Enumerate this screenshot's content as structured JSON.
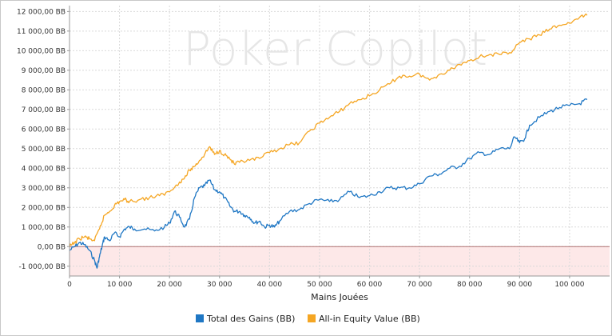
{
  "watermark": "Poker Copilot",
  "chart_data": {
    "type": "line",
    "xlabel": "Mains Jouées",
    "ylabel": "",
    "title": "",
    "xlim": [
      0,
      108000
    ],
    "ylim": [
      -1500,
      12300
    ],
    "grid": true,
    "legend_position": "bottom-center",
    "x_ticks": [
      0,
      10000,
      20000,
      30000,
      40000,
      50000,
      60000,
      70000,
      80000,
      90000,
      100000
    ],
    "x_tick_labels": [
      "0",
      "10 000",
      "20 000",
      "30 000",
      "40 000",
      "50 000",
      "60 000",
      "70 000",
      "80 000",
      "90 000",
      "100 000"
    ],
    "y_ticks": [
      -1000,
      0,
      1000,
      2000,
      3000,
      4000,
      5000,
      6000,
      7000,
      8000,
      9000,
      10000,
      11000,
      12000
    ],
    "y_tick_labels": [
      "-1 000,00 BB",
      "0,00 BB",
      "1 000,00 BB",
      "2 000,00 BB",
      "3 000,00 BB",
      "4 000,00 BB",
      "5 000,00 BB",
      "6 000,00 BB",
      "7 000,00 BB",
      "8 000,00 BB",
      "9 000,00 BB",
      "10 000,00 BB",
      "11 000,00 BB",
      "12 000,00 BB"
    ],
    "negative_region_color": "#fde8e8",
    "zero_line_color": "#b07070",
    "series": [
      {
        "name": "Total des Gains (BB)",
        "color": "#1f77c4",
        "x": [
          0,
          1000,
          2000,
          3000,
          4000,
          5000,
          5500,
          6000,
          6500,
          7000,
          8000,
          9000,
          10000,
          11000,
          12000,
          13000,
          15000,
          17000,
          19000,
          20000,
          21000,
          22000,
          23000,
          24000,
          25000,
          26000,
          27000,
          28000,
          29000,
          30000,
          31000,
          32000,
          33000,
          34000,
          35000,
          36000,
          37000,
          38000,
          39000,
          40000,
          41000,
          42000,
          44000,
          46000,
          48000,
          50000,
          52000,
          54000,
          56000,
          58000,
          60000,
          62000,
          64000,
          66000,
          68000,
          70000,
          72000,
          74000,
          76000,
          78000,
          80000,
          82000,
          84000,
          86000,
          88000,
          89000,
          90000,
          91000,
          92000,
          94000,
          96000,
          98000,
          100000,
          102000,
          103500
        ],
        "y": [
          -200,
          0,
          200,
          100,
          -200,
          -700,
          -1100,
          -500,
          0,
          500,
          300,
          700,
          500,
          900,
          1000,
          900,
          900,
          800,
          1000,
          1200,
          1800,
          1500,
          1000,
          1400,
          2500,
          3000,
          3100,
          3400,
          2900,
          2800,
          2500,
          2100,
          1800,
          1800,
          1600,
          1500,
          1200,
          1300,
          1000,
          1100,
          1000,
          1300,
          1800,
          1900,
          2200,
          2400,
          2300,
          2400,
          2800,
          2500,
          2600,
          2800,
          3000,
          3000,
          3000,
          3200,
          3600,
          3700,
          4000,
          4100,
          4500,
          4800,
          4700,
          5000,
          5000,
          5600,
          5300,
          5500,
          6200,
          6600,
          6900,
          7100,
          7200,
          7300,
          7500
        ]
      },
      {
        "name": "All-in Equity Value (BB)",
        "color": "#f5a623",
        "x": [
          0,
          1000,
          2000,
          3000,
          4000,
          5000,
          6000,
          7000,
          8000,
          9000,
          10000,
          11000,
          12000,
          14000,
          16000,
          18000,
          20000,
          22000,
          23000,
          24000,
          25000,
          26000,
          27000,
          28000,
          29000,
          30000,
          31000,
          32000,
          33000,
          34000,
          36000,
          38000,
          40000,
          42000,
          44000,
          46000,
          48000,
          50000,
          52000,
          54000,
          56000,
          58000,
          60000,
          62000,
          64000,
          66000,
          68000,
          70000,
          72000,
          74000,
          76000,
          78000,
          80000,
          82000,
          84000,
          86000,
          88000,
          90000,
          92000,
          94000,
          96000,
          98000,
          100000,
          102000,
          103500
        ],
        "y": [
          0,
          200,
          400,
          500,
          400,
          300,
          900,
          1600,
          1800,
          2100,
          2300,
          2400,
          2300,
          2400,
          2500,
          2600,
          2800,
          3300,
          3500,
          3900,
          4100,
          4400,
          4700,
          5100,
          4700,
          4900,
          4700,
          4500,
          4200,
          4300,
          4400,
          4500,
          4800,
          5000,
          5200,
          5300,
          5900,
          6300,
          6600,
          6900,
          7300,
          7500,
          7700,
          8000,
          8300,
          8700,
          8700,
          8800,
          8500,
          8800,
          9000,
          9300,
          9500,
          9700,
          9800,
          9800,
          9900,
          10400,
          10600,
          10800,
          11100,
          11300,
          11400,
          11700,
          11800
        ]
      }
    ]
  }
}
